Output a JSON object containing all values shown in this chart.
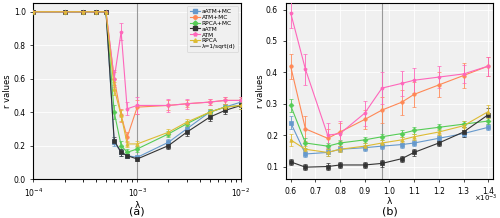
{
  "legend_labels": [
    "aATM+MC",
    "ATM+MC",
    "RPCA+MC",
    "aATM",
    "ATM",
    "RPCA",
    "λ=1/sqrt(d)"
  ],
  "colors": [
    "#6699cc",
    "#ff8855",
    "#55cc55",
    "#333333",
    "#ff66bb",
    "#ddbb33",
    "#aaaaaa"
  ],
  "markers": [
    "s",
    "o",
    "D",
    "s",
    "p",
    "^",
    "none"
  ],
  "markersizes": [
    2.5,
    2.5,
    2.5,
    2.5,
    2.5,
    2.5,
    0
  ],
  "subplot_a": {
    "xlabel": "λ",
    "ylabel": "r values",
    "ylim": [
      0,
      1.05
    ],
    "vline": 0.001,
    "lambda_vals": [
      0.0001,
      0.0002,
      0.0003,
      0.0004,
      0.0005,
      0.0006,
      0.0007,
      0.0008,
      0.001,
      0.002,
      0.003,
      0.005,
      0.007,
      0.01
    ],
    "series": {
      "aATM_MC": [
        1.0,
        1.0,
        1.0,
        1.0,
        1.0,
        0.22,
        0.16,
        0.14,
        0.13,
        0.22,
        0.3,
        0.4,
        0.43,
        0.46
      ],
      "ATM_MC": [
        1.0,
        1.0,
        1.0,
        1.0,
        1.0,
        0.6,
        0.38,
        0.25,
        0.43,
        0.44,
        0.45,
        0.46,
        0.47,
        0.47
      ],
      "RPCA_MC": [
        1.0,
        1.0,
        1.0,
        1.0,
        1.0,
        0.4,
        0.2,
        0.16,
        0.18,
        0.27,
        0.33,
        0.4,
        0.43,
        0.44
      ],
      "aATM": [
        1.0,
        1.0,
        1.0,
        1.0,
        1.0,
        0.23,
        0.16,
        0.14,
        0.12,
        0.2,
        0.28,
        0.37,
        0.41,
        0.44
      ],
      "ATM": [
        1.0,
        1.0,
        1.0,
        1.0,
        1.0,
        0.6,
        0.88,
        0.42,
        0.44,
        0.44,
        0.45,
        0.46,
        0.47,
        0.47
      ],
      "RPCA": [
        1.0,
        1.0,
        1.0,
        1.0,
        1.0,
        0.54,
        0.38,
        0.21,
        0.21,
        0.28,
        0.34,
        0.4,
        0.43,
        0.44
      ]
    },
    "errors": {
      "aATM_MC": [
        0.0,
        0.0,
        0.0,
        0.0,
        0.0,
        0.02,
        0.02,
        0.01,
        0.01,
        0.02,
        0.02,
        0.02,
        0.02,
        0.02
      ],
      "ATM_MC": [
        0.0,
        0.0,
        0.0,
        0.0,
        0.0,
        0.04,
        0.04,
        0.03,
        0.04,
        0.03,
        0.02,
        0.02,
        0.02,
        0.02
      ],
      "RPCA_MC": [
        0.0,
        0.0,
        0.0,
        0.0,
        0.0,
        0.04,
        0.03,
        0.02,
        0.02,
        0.02,
        0.02,
        0.02,
        0.02,
        0.02
      ],
      "aATM": [
        0.0,
        0.0,
        0.0,
        0.0,
        0.0,
        0.02,
        0.02,
        0.01,
        0.01,
        0.02,
        0.02,
        0.02,
        0.02,
        0.02
      ],
      "ATM": [
        0.0,
        0.0,
        0.0,
        0.0,
        0.0,
        0.05,
        0.05,
        0.04,
        0.05,
        0.04,
        0.03,
        0.02,
        0.02,
        0.02
      ],
      "RPCA": [
        0.0,
        0.0,
        0.0,
        0.0,
        0.0,
        0.04,
        0.03,
        0.02,
        0.02,
        0.02,
        0.02,
        0.02,
        0.02,
        0.02
      ]
    }
  },
  "subplot_b": {
    "xlabel": "λ",
    "ylabel": "r values",
    "xlim": [
      0.00058,
      0.00142
    ],
    "ylim": [
      0.06,
      0.62
    ],
    "yticks": [
      0.1,
      0.2,
      0.3,
      0.4,
      0.5,
      0.6
    ],
    "vline": 0.00097,
    "lambda_vals": [
      0.0006,
      0.00066,
      0.00075,
      0.0008,
      0.0009,
      0.00097,
      0.00105,
      0.0011,
      0.0012,
      0.0013,
      0.0014
    ],
    "series": {
      "aATM_MC": [
        0.24,
        0.14,
        0.145,
        0.155,
        0.16,
        0.165,
        0.17,
        0.175,
        0.19,
        0.205,
        0.225
      ],
      "ATM_MC": [
        0.42,
        0.22,
        0.19,
        0.21,
        0.25,
        0.28,
        0.305,
        0.33,
        0.36,
        0.39,
        0.42
      ],
      "RPCA_MC": [
        0.295,
        0.175,
        0.165,
        0.175,
        0.185,
        0.195,
        0.205,
        0.215,
        0.225,
        0.235,
        0.245
      ],
      "aATM": [
        0.115,
        0.098,
        0.1,
        0.105,
        0.105,
        0.11,
        0.125,
        0.145,
        0.175,
        0.21,
        0.265
      ],
      "ATM": [
        0.59,
        0.41,
        0.2,
        0.205,
        0.27,
        0.35,
        0.365,
        0.375,
        0.385,
        0.395,
        0.42
      ],
      "RPCA": [
        0.185,
        0.155,
        0.145,
        0.155,
        0.165,
        0.175,
        0.185,
        0.195,
        0.21,
        0.23,
        0.275
      ]
    },
    "errors": {
      "aATM_MC": [
        0.02,
        0.01,
        0.01,
        0.01,
        0.01,
        0.01,
        0.01,
        0.01,
        0.01,
        0.01,
        0.01
      ],
      "ATM_MC": [
        0.04,
        0.04,
        0.03,
        0.03,
        0.03,
        0.04,
        0.04,
        0.04,
        0.04,
        0.04,
        0.03
      ],
      "RPCA_MC": [
        0.02,
        0.015,
        0.01,
        0.01,
        0.01,
        0.01,
        0.01,
        0.01,
        0.01,
        0.01,
        0.01
      ],
      "aATM": [
        0.01,
        0.01,
        0.01,
        0.01,
        0.01,
        0.01,
        0.01,
        0.01,
        0.01,
        0.015,
        0.02
      ],
      "ATM": [
        0.05,
        0.05,
        0.04,
        0.04,
        0.04,
        0.05,
        0.04,
        0.04,
        0.035,
        0.03,
        0.03
      ],
      "RPCA": [
        0.02,
        0.01,
        0.01,
        0.01,
        0.01,
        0.01,
        0.01,
        0.01,
        0.01,
        0.015,
        0.02
      ]
    }
  }
}
